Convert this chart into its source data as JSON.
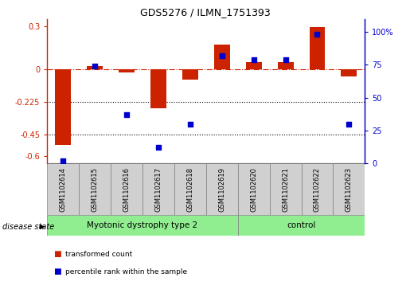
{
  "title": "GDS5276 / ILMN_1751393",
  "samples": [
    "GSM1102614",
    "GSM1102615",
    "GSM1102616",
    "GSM1102617",
    "GSM1102618",
    "GSM1102619",
    "GSM1102620",
    "GSM1102621",
    "GSM1102622",
    "GSM1102623"
  ],
  "red_values": [
    -0.52,
    0.02,
    -0.02,
    -0.27,
    -0.07,
    0.17,
    0.05,
    0.05,
    0.29,
    -0.05
  ],
  "blue_values": [
    2,
    74,
    37,
    12,
    30,
    82,
    79,
    79,
    98,
    30
  ],
  "ylim_left": [
    -0.65,
    0.35
  ],
  "ylim_right": [
    0,
    110
  ],
  "yticks_left": [
    -0.6,
    -0.45,
    -0.225,
    0.0,
    0.3
  ],
  "yticks_right": [
    0,
    25,
    50,
    75,
    100
  ],
  "ytick_labels_left": [
    "-0.6",
    "-0.45",
    "-0.225",
    "0",
    "0.3"
  ],
  "ytick_labels_right": [
    "0",
    "25",
    "50",
    "75",
    "100%"
  ],
  "hline_y": 0.0,
  "dotted_lines": [
    -0.225,
    -0.45
  ],
  "groups": [
    {
      "label": "Myotonic dystrophy type 2",
      "start": 0,
      "end": 6,
      "color": "#90EE90"
    },
    {
      "label": "control",
      "start": 6,
      "end": 10,
      "color": "#90EE90"
    }
  ],
  "disease_state_label": "disease state",
  "red_color": "#cc2200",
  "blue_color": "#0000cc",
  "bar_width": 0.5,
  "legend_items": [
    {
      "label": "transformed count",
      "color": "#cc2200"
    },
    {
      "label": "percentile rank within the sample",
      "color": "#0000cc"
    }
  ],
  "box_color": "#d0d0d0",
  "title_fontsize": 9,
  "tick_fontsize": 7,
  "label_fontsize": 6,
  "group_fontsize": 7.5
}
